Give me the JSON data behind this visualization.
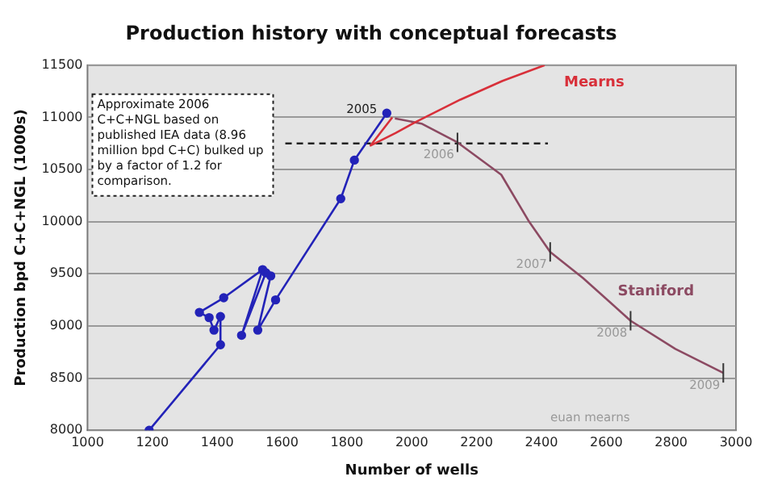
{
  "chart_data": {
    "type": "line",
    "title": "Production history with conceptual forecasts",
    "xlabel": "Number of wells",
    "ylabel": "Production bpd C+C+NGL (1000s)",
    "xlim": [
      1000,
      3000
    ],
    "xticks": [
      1000,
      1200,
      1400,
      1600,
      1800,
      2000,
      2200,
      2400,
      2600,
      2800,
      3000
    ],
    "ylim": [
      8000,
      11500
    ],
    "yticks": [
      8000,
      8500,
      9000,
      9500,
      10000,
      10500,
      11000,
      11500
    ],
    "grid": "y",
    "legend": false,
    "series": [
      {
        "color": "#2323b8",
        "marker": "circle",
        "x": [
          1190,
          1410,
          1410,
          1390,
          1375,
          1345,
          1420,
          1540,
          1475,
          1550,
          1565,
          1525,
          1580,
          1781,
          1823,
          1923
        ],
        "values": [
          8000,
          8820,
          9090,
          8960,
          9080,
          9130,
          9270,
          9540,
          8910,
          9510,
          9480,
          8960,
          9250,
          10220,
          10590,
          11040
        ]
      },
      {
        "name": "Mearns",
        "color": "#d8303a",
        "marker": "none",
        "x": [
          1940,
          1873,
          1950,
          2015,
          2150,
          2280,
          2410
        ],
        "values": [
          11000,
          10730,
          10850,
          10960,
          11170,
          11350,
          11500
        ]
      },
      {
        "name": "Staniford",
        "color": "#8c4a62",
        "marker": "none",
        "x": [
          1948,
          2030,
          2141,
          2276,
          2360,
          2427,
          2528,
          2675,
          2813,
          2961
        ],
        "values": [
          10990,
          10940,
          10760,
          10450,
          10010,
          9710,
          9460,
          9050,
          8780,
          8550
        ]
      },
      {
        "color": "#222222",
        "marker": "none",
        "line_style": "dashed",
        "x": [
          1610,
          2420
        ],
        "values": [
          10750,
          10750
        ]
      }
    ],
    "annotations": [
      "Approximate 2006 C+C+NGL based on published IEA data (8.96 million bpd C+C) bulked up by a factor of 1.2 for comparison.",
      {
        "text": "2005",
        "x": 1923,
        "y": 11040
      },
      {
        "text": "2006",
        "x": 2141,
        "y": 10760
      },
      {
        "text": "2007",
        "x": 2427,
        "y": 9710
      },
      {
        "text": "2008",
        "x": 2675,
        "y": 9050
      },
      {
        "text": "2009",
        "x": 2961,
        "y": 8550
      },
      "euan mearns"
    ]
  }
}
